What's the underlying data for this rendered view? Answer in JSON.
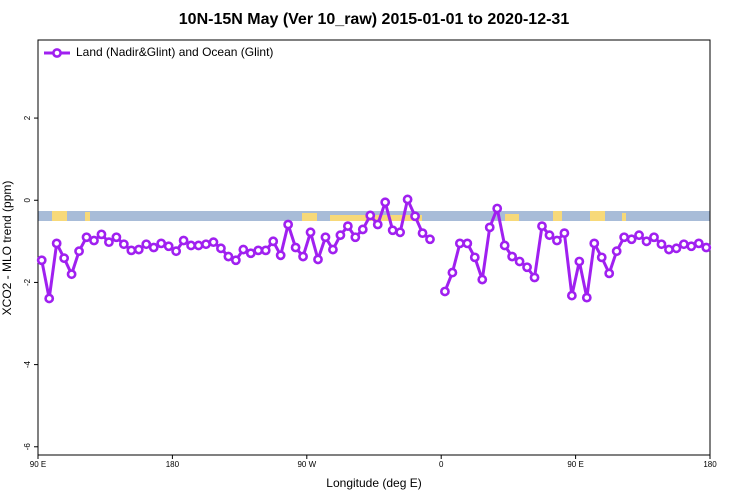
{
  "chart_data": {
    "type": "line",
    "title": "10N-15N May (Ver 10_raw)   2015-01-01 to 2020-12-31",
    "x_label": "Longitude (deg E)",
    "y_label": "XCO2 - MLO trend (ppm)",
    "xlim": [
      90,
      540
    ],
    "xticks": [
      {
        "value": 90,
        "label": "90 E"
      },
      180,
      {
        "value": 270,
        "label": "90 W"
      },
      {
        "value": 360,
        "label": "0"
      },
      {
        "value": 450,
        "label": "90 E"
      },
      {
        "value": 540,
        "label": "180"
      }
    ],
    "ylim": [
      -6.2,
      3.9
    ],
    "yticks": [
      -6,
      -4,
      -2,
      0,
      2
    ],
    "legend": "top-left",
    "x": [
      92.5,
      97.5,
      102.5,
      107.5,
      112.5,
      117.5,
      122.5,
      127.5,
      132.5,
      137.5,
      142.5,
      147.5,
      152.5,
      157.5,
      162.5,
      167.5,
      172.5,
      177.5,
      182.5,
      187.5,
      192.5,
      197.5,
      202.5,
      207.5,
      212.5,
      217.5,
      222.5,
      227.5,
      232.5,
      237.5,
      242.5,
      247.5,
      252.5,
      257.5,
      262.5,
      267.5,
      272.5,
      277.5,
      282.5,
      287.5,
      292.5,
      297.5,
      302.5,
      307.5,
      312.5,
      317.5,
      322.5,
      327.5,
      332.5,
      337.5,
      342.5,
      347.5,
      352.5,
      357.5,
      362.5,
      367.5,
      372.5,
      377.5,
      382.5,
      387.5,
      392.5,
      397.5,
      402.5,
      407.5,
      412.5,
      417.5,
      422.5,
      427.5,
      432.5,
      437.5,
      442.5,
      447.5,
      452.5,
      457.5,
      462.5,
      467.5,
      472.5,
      477.5,
      482.5,
      487.5,
      492.5,
      497.5,
      502.5,
      507.5,
      512.5,
      517.5,
      522.5,
      527.5,
      532.5,
      537.5
    ],
    "series": [
      {
        "name": "Land (Nadir&Glint) and Ocean (Glint)",
        "color": "#a020f0",
        "values": [
          -1.46,
          -2.39,
          -1.05,
          -1.41,
          -1.8,
          -1.24,
          -0.9,
          -0.98,
          -0.83,
          -1.02,
          -0.9,
          -1.07,
          -1.22,
          -1.2,
          -1.07,
          -1.15,
          -1.05,
          -1.12,
          -1.24,
          -0.98,
          -1.1,
          -1.1,
          -1.07,
          -1.02,
          -1.17,
          -1.37,
          -1.46,
          -1.2,
          -1.29,
          -1.22,
          -1.22,
          -1.0,
          -1.34,
          -0.59,
          -1.15,
          -1.37,
          -0.78,
          -1.44,
          -0.9,
          -1.2,
          -0.85,
          -0.63,
          -0.9,
          -0.71,
          -0.37,
          -0.59,
          -0.05,
          -0.73,
          -0.78,
          0.02,
          -0.39,
          -0.8,
          -0.95,
          null,
          -2.22,
          -1.76,
          -1.05,
          -1.05,
          -1.39,
          -1.93,
          -0.66,
          -0.2,
          -1.1,
          -1.37,
          -1.49,
          -1.63,
          -1.88,
          -0.63,
          -0.85,
          -0.98,
          -0.8,
          -2.32,
          -1.49,
          -2.37,
          -1.05,
          -1.39,
          -1.78,
          -1.24,
          -0.9,
          -0.95,
          -0.85,
          -1.0,
          -0.9,
          -1.07,
          -1.2,
          -1.17,
          -1.07,
          -1.12,
          -1.05,
          -1.15
        ]
      }
    ]
  }
}
